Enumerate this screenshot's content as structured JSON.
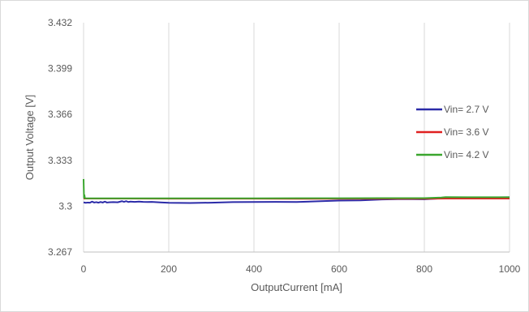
{
  "chart_data": {
    "type": "line",
    "title": "",
    "xlabel": "OutputCurrent [mA]",
    "ylabel": "Output Voltage [V]",
    "xlim": [
      0,
      1000
    ],
    "ylim": [
      3.267,
      3.432
    ],
    "x_ticks": [
      "0",
      "200",
      "400",
      "600",
      "800",
      "1000"
    ],
    "y_ticks": [
      "3.432",
      "3.399",
      "3.366",
      "3.333",
      "3.3",
      "3.267"
    ],
    "x_tick_values": [
      0,
      200,
      400,
      600,
      800,
      1000
    ],
    "y_tick_values": [
      3.432,
      3.399,
      3.366,
      3.333,
      3.3,
      3.267
    ],
    "grid": "vertical",
    "legend_position": "right",
    "series": [
      {
        "name": "Vin= 2.7 V",
        "color": "#2b2ba8",
        "points": [
          [
            0,
            3.3027
          ],
          [
            5,
            3.3024
          ],
          [
            10,
            3.3026
          ],
          [
            15,
            3.3025
          ],
          [
            20,
            3.3033
          ],
          [
            25,
            3.3026
          ],
          [
            30,
            3.3029
          ],
          [
            35,
            3.3025
          ],
          [
            40,
            3.303
          ],
          [
            45,
            3.3026
          ],
          [
            50,
            3.3033
          ],
          [
            55,
            3.3026
          ],
          [
            60,
            3.3028
          ],
          [
            70,
            3.3029
          ],
          [
            80,
            3.3028
          ],
          [
            90,
            3.3036
          ],
          [
            95,
            3.3031
          ],
          [
            100,
            3.3036
          ],
          [
            105,
            3.303
          ],
          [
            110,
            3.3033
          ],
          [
            120,
            3.3031
          ],
          [
            130,
            3.3033
          ],
          [
            140,
            3.3031
          ],
          [
            150,
            3.303
          ],
          [
            160,
            3.3031
          ],
          [
            180,
            3.3027
          ],
          [
            200,
            3.3024
          ],
          [
            250,
            3.3023
          ],
          [
            300,
            3.3025
          ],
          [
            350,
            3.3029
          ],
          [
            400,
            3.303
          ],
          [
            450,
            3.3031
          ],
          [
            500,
            3.303
          ],
          [
            550,
            3.3035
          ],
          [
            600,
            3.304
          ],
          [
            650,
            3.3042
          ],
          [
            700,
            3.3048
          ],
          [
            750,
            3.3051
          ],
          [
            800,
            3.305
          ],
          [
            850,
            3.3058
          ],
          [
            900,
            3.3062
          ],
          [
            950,
            3.3063
          ],
          [
            1000,
            3.3064
          ]
        ]
      },
      {
        "name": "Vin= 3.6 V",
        "color": "#e02020",
        "points": [
          [
            0,
            3.3055
          ],
          [
            50,
            3.3055
          ],
          [
            100,
            3.3055
          ],
          [
            200,
            3.3054
          ],
          [
            300,
            3.3054
          ],
          [
            400,
            3.3054
          ],
          [
            500,
            3.3053
          ],
          [
            600,
            3.3053
          ],
          [
            700,
            3.3053
          ],
          [
            800,
            3.3053
          ],
          [
            850,
            3.3055
          ],
          [
            900,
            3.3055
          ],
          [
            1000,
            3.3055
          ]
        ]
      },
      {
        "name": "Vin= 4.2 V",
        "color": "#3aa62e",
        "points": [
          [
            0,
            3.3195
          ],
          [
            1,
            3.306
          ],
          [
            2,
            3.308
          ],
          [
            3,
            3.3058
          ],
          [
            5,
            3.3056
          ],
          [
            50,
            3.3056
          ],
          [
            100,
            3.3056
          ],
          [
            200,
            3.3056
          ],
          [
            300,
            3.3056
          ],
          [
            400,
            3.3056
          ],
          [
            500,
            3.3057
          ],
          [
            600,
            3.3057
          ],
          [
            700,
            3.3058
          ],
          [
            800,
            3.3058
          ],
          [
            840,
            3.3062
          ],
          [
            850,
            3.3065
          ],
          [
            900,
            3.3064
          ],
          [
            1000,
            3.3064
          ]
        ]
      }
    ]
  }
}
